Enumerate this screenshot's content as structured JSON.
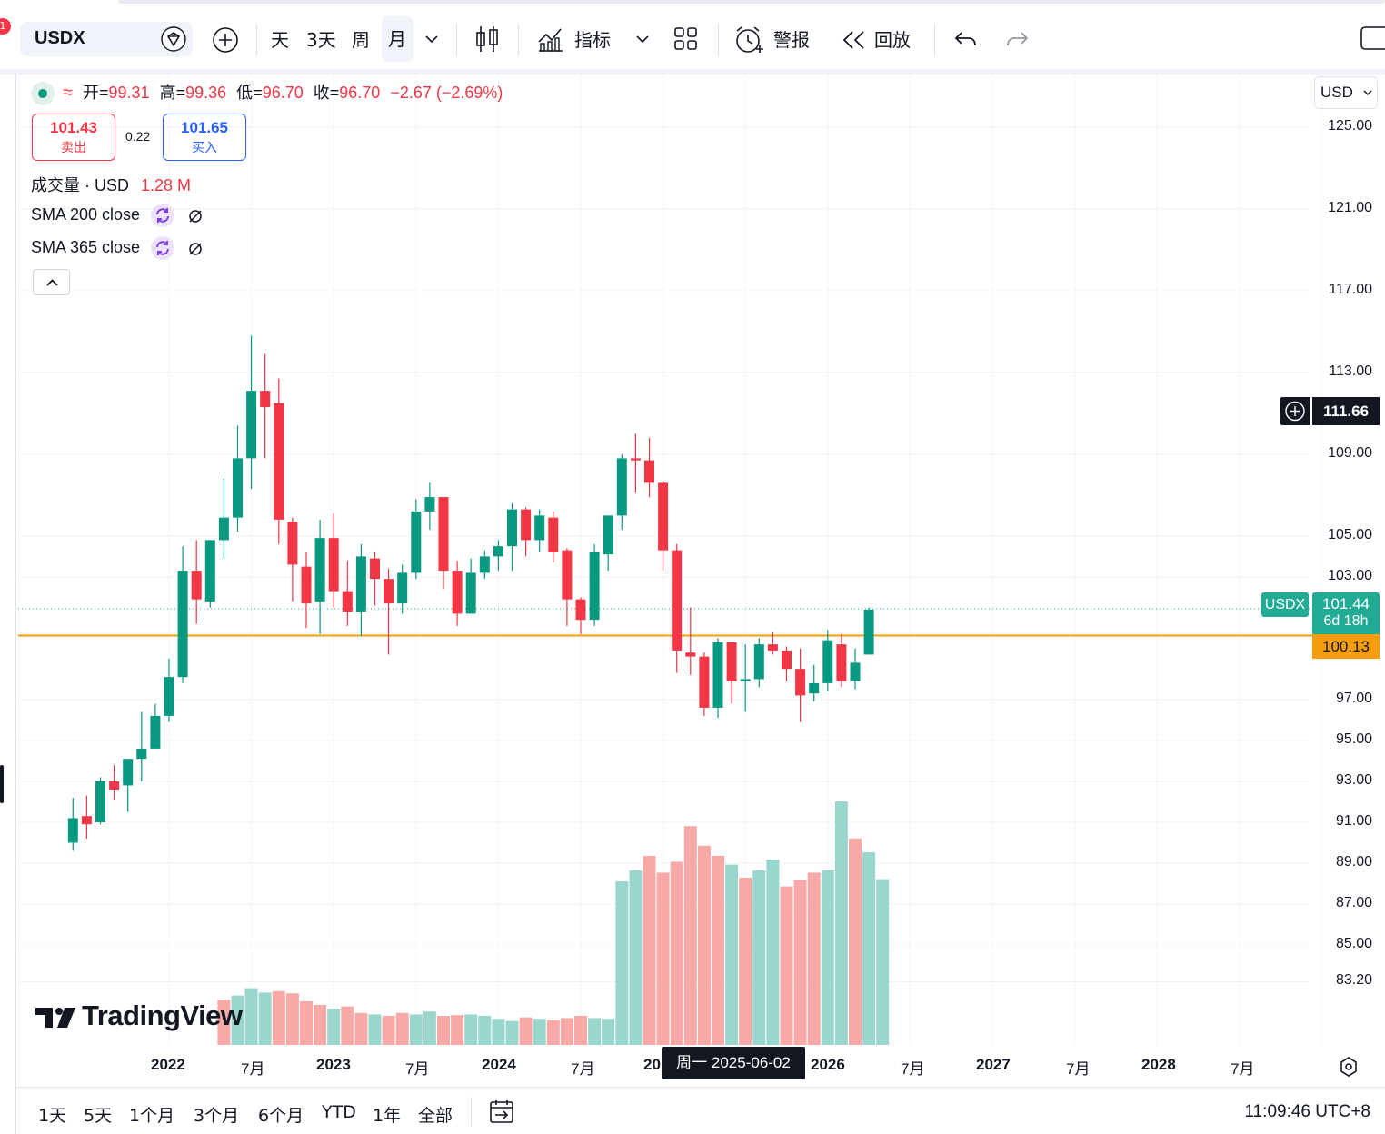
{
  "toolbar": {
    "notification_count": "1",
    "symbol": "USDX",
    "intervals": [
      "天",
      "3天",
      "周",
      "月"
    ],
    "active_interval": "月",
    "indicators_label": "指标",
    "alert_label": "警报",
    "replay_label": "回放"
  },
  "legend": {
    "open_label": "开=",
    "open": "99.31",
    "high_label": "高=",
    "high": "99.36",
    "low_label": "低=",
    "low": "96.70",
    "close_label": "收=",
    "close": "96.70",
    "change": "−2.67 (−2.69%)",
    "sell_price": "101.43",
    "sell_label": "卖出",
    "spread": "0.22",
    "buy_price": "101.65",
    "buy_label": "买入",
    "volume_label": "成交量 · USD",
    "volume_value": "1.28 M",
    "sma200_label": "SMA 200 close",
    "sma365_label": "SMA 365 close"
  },
  "price_axis": {
    "currency": "USD",
    "ticks": [
      "125.00",
      "121.00",
      "117.00",
      "113.00",
      "109.00",
      "105.00",
      "103.00",
      "97.00",
      "95.00",
      "93.00",
      "91.00",
      "89.00",
      "87.00",
      "85.00",
      "83.20"
    ],
    "crosshair_price": "111.66",
    "last_symbol": "USDX",
    "last_price": "101.44",
    "countdown": "6d 18h",
    "line_price": "100.13"
  },
  "time_axis": {
    "ticks": [
      "2022",
      "7月",
      "2023",
      "7月",
      "2024",
      "7月",
      "20",
      "2026",
      "7月",
      "2027",
      "7月",
      "2028",
      "7月"
    ],
    "crosshair_date": "周一 2025-06-02"
  },
  "watermark": "TradingView",
  "bottom_bar": {
    "ranges": [
      "1天",
      "5天",
      "1个月",
      "3个月",
      "6个月",
      "YTD",
      "1年",
      "全部"
    ],
    "clock": "11:09:46 UTC+8"
  },
  "colors": {
    "up": "#089981",
    "down": "#f23645",
    "up_vol": "#9ad6cd",
    "down_vol": "#f7a9a7",
    "hline": "#f59d0b",
    "blue": "#2962ff"
  },
  "chart_data": {
    "type": "candlestick",
    "symbol": "USDX",
    "interval": "1M",
    "candles": [
      {
        "t": "2021-06",
        "o": 90.0,
        "h": 92.2,
        "l": 89.6,
        "c": 91.2
      },
      {
        "t": "2021-07",
        "o": 91.3,
        "h": 92.3,
        "l": 90.2,
        "c": 90.9
      },
      {
        "t": "2021-08",
        "o": 91.0,
        "h": 93.2,
        "l": 90.9,
        "c": 93.0
      },
      {
        "t": "2021-09",
        "o": 93.0,
        "h": 93.8,
        "l": 92.1,
        "c": 92.6
      },
      {
        "t": "2021-10",
        "o": 92.8,
        "h": 93.8,
        "l": 91.5,
        "c": 94.1
      },
      {
        "t": "2021-11",
        "o": 94.1,
        "h": 96.4,
        "l": 93.0,
        "c": 94.6
      },
      {
        "t": "2021-12",
        "o": 94.6,
        "h": 96.8,
        "l": 95.0,
        "c": 96.2
      },
      {
        "t": "2022-01",
        "o": 96.2,
        "h": 99.0,
        "l": 95.9,
        "c": 98.1
      },
      {
        "t": "2022-02",
        "o": 98.1,
        "h": 104.5,
        "l": 97.8,
        "c": 103.3
      },
      {
        "t": "2022-03",
        "o": 103.3,
        "h": 104.8,
        "l": 100.7,
        "c": 101.9
      },
      {
        "t": "2022-04",
        "o": 101.8,
        "h": 104.7,
        "l": 101.5,
        "c": 104.8
      },
      {
        "t": "2022-05",
        "o": 104.8,
        "h": 107.8,
        "l": 103.9,
        "c": 105.9
      },
      {
        "t": "2022-06",
        "o": 105.9,
        "h": 110.4,
        "l": 105.2,
        "c": 108.8
      },
      {
        "t": "2022-07",
        "o": 108.8,
        "h": 114.8,
        "l": 107.3,
        "c": 112.1
      },
      {
        "t": "2022-08",
        "o": 112.1,
        "h": 113.9,
        "l": 108.8,
        "c": 111.3
      },
      {
        "t": "2022-09",
        "o": 111.5,
        "h": 112.7,
        "l": 104.6,
        "c": 105.8
      },
      {
        "t": "2022-10",
        "o": 105.7,
        "h": 105.9,
        "l": 101.8,
        "c": 103.6
      },
      {
        "t": "2022-11",
        "o": 103.5,
        "h": 104.2,
        "l": 100.5,
        "c": 101.7
      },
      {
        "t": "2022-12",
        "o": 101.8,
        "h": 105.8,
        "l": 100.2,
        "c": 104.9
      },
      {
        "t": "2023-01",
        "o": 104.9,
        "h": 106.1,
        "l": 101.5,
        "c": 102.3
      },
      {
        "t": "2023-02",
        "o": 102.3,
        "h": 103.8,
        "l": 100.6,
        "c": 101.3
      },
      {
        "t": "2023-03",
        "o": 101.3,
        "h": 104.6,
        "l": 100.1,
        "c": 104.0
      },
      {
        "t": "2023-04",
        "o": 103.9,
        "h": 104.2,
        "l": 101.6,
        "c": 102.9
      },
      {
        "t": "2023-05",
        "o": 102.9,
        "h": 103.4,
        "l": 99.2,
        "c": 101.7
      },
      {
        "t": "2023-06",
        "o": 101.7,
        "h": 103.6,
        "l": 101.2,
        "c": 103.2
      },
      {
        "t": "2023-07",
        "o": 103.2,
        "h": 106.8,
        "l": 102.9,
        "c": 106.2
      },
      {
        "t": "2023-08",
        "o": 106.2,
        "h": 107.6,
        "l": 105.3,
        "c": 106.9
      },
      {
        "t": "2023-09",
        "o": 106.9,
        "h": 106.6,
        "l": 102.4,
        "c": 103.3
      },
      {
        "t": "2023-10",
        "o": 103.3,
        "h": 103.8,
        "l": 100.6,
        "c": 101.2
      },
      {
        "t": "2023-11",
        "o": 101.2,
        "h": 103.9,
        "l": 101.6,
        "c": 103.2
      },
      {
        "t": "2023-12",
        "o": 103.2,
        "h": 104.3,
        "l": 102.9,
        "c": 104.0
      },
      {
        "t": "2024-01",
        "o": 104.0,
        "h": 104.8,
        "l": 103.3,
        "c": 104.5
      },
      {
        "t": "2024-02",
        "o": 104.5,
        "h": 106.6,
        "l": 103.3,
        "c": 106.3
      },
      {
        "t": "2024-03",
        "o": 106.3,
        "h": 106.4,
        "l": 104.0,
        "c": 104.8
      },
      {
        "t": "2024-04",
        "o": 104.8,
        "h": 106.3,
        "l": 104.2,
        "c": 106.0
      },
      {
        "t": "2024-05",
        "o": 105.9,
        "h": 106.2,
        "l": 103.7,
        "c": 104.2
      },
      {
        "t": "2024-06",
        "o": 104.3,
        "h": 104.4,
        "l": 100.6,
        "c": 101.9
      },
      {
        "t": "2024-07",
        "o": 101.9,
        "h": 102.0,
        "l": 100.2,
        "c": 100.9
      },
      {
        "t": "2024-08",
        "o": 100.9,
        "h": 104.6,
        "l": 100.6,
        "c": 104.2
      },
      {
        "t": "2024-09",
        "o": 104.1,
        "h": 106.0,
        "l": 103.3,
        "c": 106.0
      },
      {
        "t": "2024-10",
        "o": 106.0,
        "h": 109.0,
        "l": 105.3,
        "c": 108.8
      },
      {
        "t": "2024-11",
        "o": 108.8,
        "h": 110.0,
        "l": 107.1,
        "c": 108.7
      },
      {
        "t": "2024-12",
        "o": 108.7,
        "h": 109.8,
        "l": 106.9,
        "c": 107.6
      },
      {
        "t": "2025-01",
        "o": 107.6,
        "h": 107.7,
        "l": 103.3,
        "c": 104.3
      },
      {
        "t": "2025-02",
        "o": 104.3,
        "h": 104.6,
        "l": 98.3,
        "c": 99.4
      },
      {
        "t": "2025-03",
        "o": 99.3,
        "h": 101.5,
        "l": 98.2,
        "c": 99.1
      },
      {
        "t": "2025-04",
        "o": 99.1,
        "h": 99.3,
        "l": 96.2,
        "c": 96.6
      },
      {
        "t": "2025-05",
        "o": 96.6,
        "h": 100.0,
        "l": 96.1,
        "c": 99.8
      },
      {
        "t": "2025-06",
        "o": 99.8,
        "h": 99.8,
        "l": 96.8,
        "c": 97.9
      },
      {
        "t": "2025-07",
        "o": 97.9,
        "h": 99.7,
        "l": 96.4,
        "c": 98.0
      },
      {
        "t": "2025-08",
        "o": 98.0,
        "h": 100.0,
        "l": 97.6,
        "c": 99.7
      },
      {
        "t": "2025-09",
        "o": 99.7,
        "h": 100.3,
        "l": 99.2,
        "c": 99.4
      },
      {
        "t": "2025-10",
        "o": 99.4,
        "h": 99.6,
        "l": 97.9,
        "c": 98.5
      },
      {
        "t": "2025-11",
        "o": 98.5,
        "h": 99.5,
        "l": 95.9,
        "c": 97.2
      },
      {
        "t": "2025-12",
        "o": 97.3,
        "h": 98.7,
        "l": 96.9,
        "c": 97.8
      },
      {
        "t": "2026-01",
        "o": 97.8,
        "h": 100.4,
        "l": 97.4,
        "c": 99.9
      },
      {
        "t": "2026-02",
        "o": 99.7,
        "h": 100.2,
        "l": 97.6,
        "c": 97.9
      },
      {
        "t": "2026-03",
        "o": 97.9,
        "h": 99.5,
        "l": 97.5,
        "c": 98.8
      },
      {
        "t": "2026-04",
        "o": 99.2,
        "h": 101.5,
        "l": 99.2,
        "c": 101.4
      }
    ],
    "volume": [
      {
        "t": "2022-05",
        "v": 0.62,
        "up": false
      },
      {
        "t": "2022-06",
        "v": 0.68,
        "up": true
      },
      {
        "t": "2022-07",
        "v": 0.78,
        "up": true
      },
      {
        "t": "2022-08",
        "v": 0.72,
        "up": true
      },
      {
        "t": "2022-09",
        "v": 0.74,
        "up": false
      },
      {
        "t": "2022-10",
        "v": 0.71,
        "up": false
      },
      {
        "t": "2022-11",
        "v": 0.6,
        "up": false
      },
      {
        "t": "2022-12",
        "v": 0.55,
        "up": false
      },
      {
        "t": "2023-01",
        "v": 0.5,
        "up": true
      },
      {
        "t": "2023-02",
        "v": 0.53,
        "up": false
      },
      {
        "t": "2023-03",
        "v": 0.44,
        "up": false
      },
      {
        "t": "2023-04",
        "v": 0.42,
        "up": true
      },
      {
        "t": "2023-05",
        "v": 0.4,
        "up": false
      },
      {
        "t": "2023-06",
        "v": 0.44,
        "up": false
      },
      {
        "t": "2023-07",
        "v": 0.42,
        "up": true
      },
      {
        "t": "2023-08",
        "v": 0.46,
        "up": true
      },
      {
        "t": "2023-09",
        "v": 0.4,
        "up": false
      },
      {
        "t": "2023-10",
        "v": 0.41,
        "up": false
      },
      {
        "t": "2023-11",
        "v": 0.42,
        "up": true
      },
      {
        "t": "2023-12",
        "v": 0.4,
        "up": true
      },
      {
        "t": "2024-01",
        "v": 0.36,
        "up": true
      },
      {
        "t": "2024-02",
        "v": 0.33,
        "up": true
      },
      {
        "t": "2024-03",
        "v": 0.38,
        "up": false
      },
      {
        "t": "2024-04",
        "v": 0.36,
        "up": true
      },
      {
        "t": "2024-05",
        "v": 0.34,
        "up": false
      },
      {
        "t": "2024-06",
        "v": 0.37,
        "up": false
      },
      {
        "t": "2024-07",
        "v": 0.4,
        "up": false
      },
      {
        "t": "2024-08",
        "v": 0.37,
        "up": true
      },
      {
        "t": "2024-09",
        "v": 0.36,
        "up": true
      },
      {
        "t": "2024-10",
        "v": 2.25,
        "up": true
      },
      {
        "t": "2024-11",
        "v": 2.4,
        "up": true
      },
      {
        "t": "2024-12",
        "v": 2.6,
        "up": false
      },
      {
        "t": "2025-01",
        "v": 2.37,
        "up": false
      },
      {
        "t": "2025-02",
        "v": 2.52,
        "up": false
      },
      {
        "t": "2025-03",
        "v": 3.01,
        "up": false
      },
      {
        "t": "2025-04",
        "v": 2.74,
        "up": false
      },
      {
        "t": "2025-05",
        "v": 2.6,
        "up": false
      },
      {
        "t": "2025-06",
        "v": 2.48,
        "up": true
      },
      {
        "t": "2025-07",
        "v": 2.3,
        "up": false
      },
      {
        "t": "2025-08",
        "v": 2.4,
        "up": true
      },
      {
        "t": "2025-09",
        "v": 2.55,
        "up": true
      },
      {
        "t": "2025-10",
        "v": 2.18,
        "up": false
      },
      {
        "t": "2025-11",
        "v": 2.27,
        "up": false
      },
      {
        "t": "2025-12",
        "v": 2.37,
        "up": false
      },
      {
        "t": "2026-01",
        "v": 2.4,
        "up": true
      },
      {
        "t": "2026-02",
        "v": 3.35,
        "up": true
      },
      {
        "t": "2026-03",
        "v": 2.84,
        "up": false
      },
      {
        "t": "2026-04",
        "v": 2.65,
        "up": true
      },
      {
        "t": "2026-05",
        "v": 2.28,
        "up": true
      }
    ],
    "horizontal_line": 100.13,
    "last_price": 101.44,
    "y_range": [
      82.4,
      126.5
    ]
  }
}
